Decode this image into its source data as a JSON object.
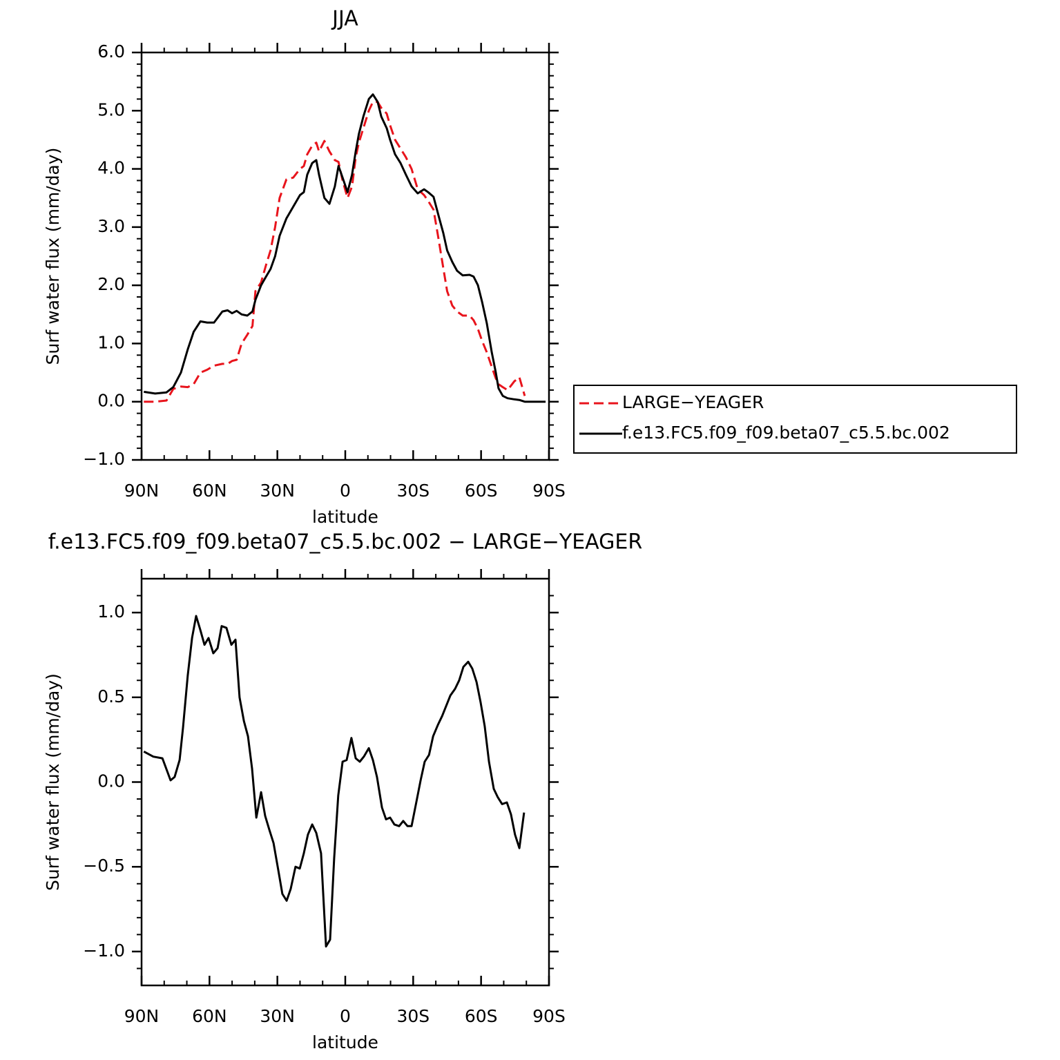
{
  "chart_data": [
    {
      "type": "line",
      "title": "JJA",
      "xlabel": "latitude",
      "ylabel": "Surf water flux (mm/day)",
      "x": [
        89,
        84,
        79,
        76,
        72.6,
        69.6,
        67,
        64,
        61,
        58,
        54.3,
        52,
        50,
        48,
        45.8,
        43.3,
        41,
        39.7,
        37.2,
        35,
        33,
        31,
        29,
        26,
        23,
        20,
        18.3,
        16.8,
        14.6,
        12.8,
        11.6,
        9.2,
        7,
        4.6,
        3,
        1.2,
        -1,
        -3,
        -4.6,
        -6,
        -8,
        -10.4,
        -12.2,
        -14.3,
        -15.9,
        -18.3,
        -19.8,
        -22,
        -24.4,
        -26.8,
        -29.3,
        -32,
        -34.8,
        -36.6,
        -39,
        -41.2,
        -43.3,
        -45,
        -47.3,
        -49.4,
        -51.9,
        -54.9,
        -56.7,
        -58.6,
        -60.4,
        -62.5,
        -64.7,
        -66.5,
        -67.7,
        -69.6,
        -71.7,
        -74.7,
        -76.9,
        -79.3,
        -83.9,
        -88.5
      ],
      "series": [
        {
          "name": "LARGE−YEAGER",
          "color": "#e8141c",
          "style": "dashed",
          "values": [
            0.0,
            0.0,
            0.02,
            0.22,
            0.26,
            0.25,
            0.3,
            0.5,
            0.55,
            0.62,
            0.65,
            0.65,
            0.7,
            0.72,
            1.0,
            1.15,
            1.3,
            1.9,
            2.05,
            2.35,
            2.6,
            3.0,
            3.5,
            3.82,
            3.85,
            4.0,
            4.05,
            4.25,
            4.4,
            4.45,
            4.3,
            4.48,
            4.3,
            4.15,
            4.12,
            3.8,
            3.5,
            3.7,
            4.2,
            4.45,
            4.7,
            5.0,
            5.15,
            5.15,
            5.05,
            4.95,
            4.75,
            4.5,
            4.35,
            4.2,
            4.0,
            3.65,
            3.55,
            3.45,
            3.3,
            2.8,
            2.3,
            1.9,
            1.65,
            1.55,
            1.48,
            1.48,
            1.4,
            1.25,
            1.05,
            0.85,
            0.6,
            0.4,
            0.3,
            0.25,
            0.2,
            0.35,
            0.42,
            0.1,
            null,
            null
          ]
        },
        {
          "name": "f.e13.FC5.f09_f09.beta07_c5.5.bc.002",
          "color": "#000000",
          "style": "solid",
          "values": [
            0.17,
            0.14,
            0.16,
            0.25,
            0.5,
            0.9,
            1.2,
            1.38,
            1.36,
            1.36,
            1.55,
            1.57,
            1.52,
            1.56,
            1.5,
            1.48,
            1.55,
            1.75,
            2.0,
            2.15,
            2.28,
            2.5,
            2.85,
            3.15,
            3.35,
            3.55,
            3.6,
            3.9,
            4.1,
            4.15,
            3.9,
            3.5,
            3.4,
            3.7,
            4.05,
            3.85,
            3.6,
            3.9,
            4.3,
            4.6,
            4.9,
            5.2,
            5.28,
            5.15,
            4.9,
            4.7,
            4.5,
            4.25,
            4.1,
            3.9,
            3.7,
            3.58,
            3.65,
            3.6,
            3.52,
            3.2,
            2.9,
            2.6,
            2.4,
            2.25,
            2.17,
            2.18,
            2.15,
            2.0,
            1.72,
            1.35,
            0.85,
            0.5,
            0.23,
            0.1,
            0.06,
            0.04,
            0.03,
            0.0,
            0.0,
            0.0
          ]
        }
      ],
      "xlim": [
        90,
        -90
      ],
      "xticks": [
        {
          "value": 90,
          "label": "90N"
        },
        {
          "value": 60,
          "label": "60N"
        },
        {
          "value": 30,
          "label": "30N"
        },
        0,
        {
          "value": -30,
          "label": "30S"
        },
        {
          "value": -60,
          "label": "60S"
        },
        {
          "value": -90,
          "label": "90S"
        }
      ],
      "ylim": [
        -1,
        6
      ],
      "yticks": [
        {
          "value": -1,
          "label": "−1.0"
        },
        {
          "value": 0,
          "label": "0.0"
        },
        {
          "value": 1,
          "label": "1.0"
        },
        {
          "value": 2,
          "label": "2.0"
        },
        {
          "value": 3,
          "label": "3.0"
        },
        {
          "value": 4,
          "label": "4.0"
        },
        {
          "value": 5,
          "label": "5.0"
        },
        {
          "value": 6,
          "label": "6.0"
        }
      ],
      "legend": "right"
    },
    {
      "type": "line",
      "title": "f.e13.FC5.f09_f09.beta07_c5.5.bc.002 − LARGE−YEAGER",
      "xlabel": "latitude",
      "ylabel": "Surf water flux (mm/day)",
      "x": [
        89,
        84.8,
        80.8,
        77.2,
        75.4,
        73.2,
        71.7,
        69.6,
        67.7,
        65.9,
        64.1,
        62.2,
        60.4,
        58.3,
        56.4,
        54.6,
        52.5,
        50.3,
        48.5,
        46.7,
        44.8,
        43,
        41.2,
        39.3,
        37.2,
        35.4,
        33.6,
        31.7,
        29.6,
        27.8,
        25.9,
        24.1,
        22,
        20.1,
        18.3,
        16.5,
        14.6,
        12.8,
        10.7,
        8.5,
        6.7,
        4.9,
        3.1,
        1.2,
        -0.6,
        -2.7,
        -4.6,
        -6.4,
        -8.2,
        -10.4,
        -12.2,
        -14,
        -16.2,
        -18,
        -19.8,
        -21.7,
        -23.8,
        -25.6,
        -27.5,
        -29.3,
        -31.5,
        -33.3,
        -35.1,
        -37,
        -38.8,
        -41,
        -42.8,
        -44.6,
        -46.4,
        -48.5,
        -50.3,
        -52.2,
        -54.3,
        -56.1,
        -58,
        -59.8,
        -61.6,
        -63.5,
        -65.6,
        -67.4,
        -69.3,
        -71.4,
        -73.2,
        -75,
        -76.9,
        -79
      ],
      "series": [
        {
          "color": "#000000",
          "style": "solid",
          "values": [
            0.18,
            0.15,
            0.14,
            0.01,
            0.03,
            0.13,
            0.32,
            0.63,
            0.85,
            0.98,
            0.9,
            0.81,
            0.85,
            0.76,
            0.79,
            0.92,
            0.91,
            0.81,
            0.84,
            0.5,
            0.36,
            0.27,
            0.08,
            -0.21,
            -0.06,
            -0.2,
            -0.28,
            -0.36,
            -0.52,
            -0.66,
            -0.7,
            -0.63,
            -0.5,
            -0.51,
            -0.42,
            -0.31,
            -0.25,
            -0.3,
            -0.42,
            -0.97,
            -0.93,
            -0.45,
            -0.08,
            0.12,
            0.13,
            0.26,
            0.14,
            0.12,
            0.15,
            0.2,
            0.13,
            0.03,
            -0.15,
            -0.22,
            -0.21,
            -0.25,
            -0.26,
            -0.23,
            -0.26,
            -0.26,
            -0.11,
            0.01,
            0.12,
            0.16,
            0.27,
            0.34,
            0.39,
            0.45,
            0.51,
            0.55,
            0.6,
            0.68,
            0.71,
            0.67,
            0.59,
            0.47,
            0.33,
            0.12,
            -0.04,
            -0.09,
            -0.13,
            -0.12,
            -0.19,
            -0.31,
            -0.39,
            -0.18
          ]
        }
      ],
      "xlim": [
        90,
        -90
      ],
      "xticks": [
        {
          "value": 90,
          "label": "90N"
        },
        {
          "value": 60,
          "label": "60N"
        },
        {
          "value": 30,
          "label": "30N"
        },
        0,
        {
          "value": -30,
          "label": "30S"
        },
        {
          "value": -60,
          "label": "60S"
        },
        {
          "value": -90,
          "label": "90S"
        }
      ],
      "ylim": [
        -1.2,
        1.2
      ],
      "yticks": [
        {
          "value": -1,
          "label": "−1.0"
        },
        {
          "value": -0.5,
          "label": "−0.5"
        },
        {
          "value": 0,
          "label": "0.0"
        },
        {
          "value": 0.5,
          "label": "0.5"
        },
        {
          "value": 1,
          "label": "1.0"
        }
      ]
    }
  ]
}
